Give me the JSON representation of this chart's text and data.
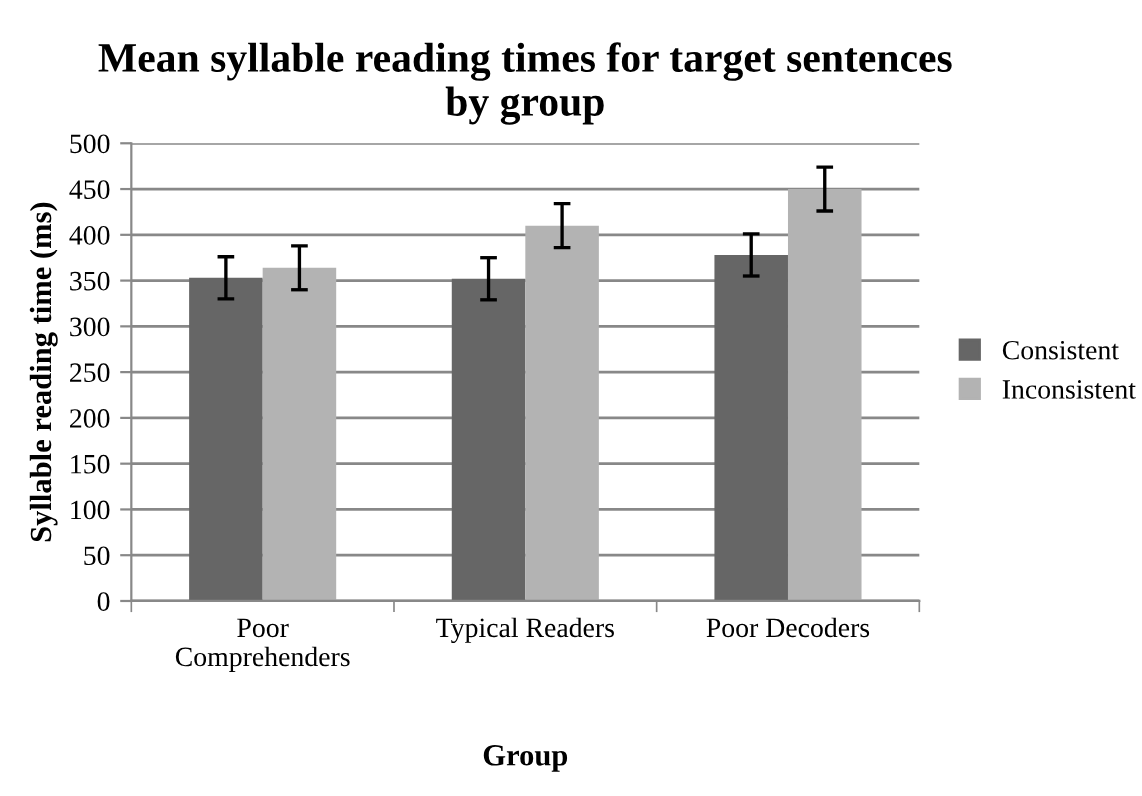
{
  "chart_data": {
    "type": "bar",
    "title": "Mean syllable reading times for target sentences\nby group",
    "xlabel": "Group",
    "ylabel": "Syllable reading time (ms)",
    "categories": [
      "Poor\nComprehenders",
      "Typical Readers",
      "Poor Decoders"
    ],
    "series": [
      {
        "name": "Consistent",
        "color": "#666666",
        "values": [
          353,
          352,
          378
        ],
        "errors": [
          23,
          23,
          23
        ]
      },
      {
        "name": "Inconsistent",
        "color": "#b3b3b3",
        "values": [
          364,
          410,
          450
        ],
        "errors": [
          24,
          24,
          24
        ]
      }
    ],
    "ylim": [
      0,
      500
    ],
    "yticks": [
      0,
      50,
      100,
      150,
      200,
      250,
      300,
      350,
      400,
      450,
      500
    ],
    "grid": "y",
    "legend": "right"
  }
}
